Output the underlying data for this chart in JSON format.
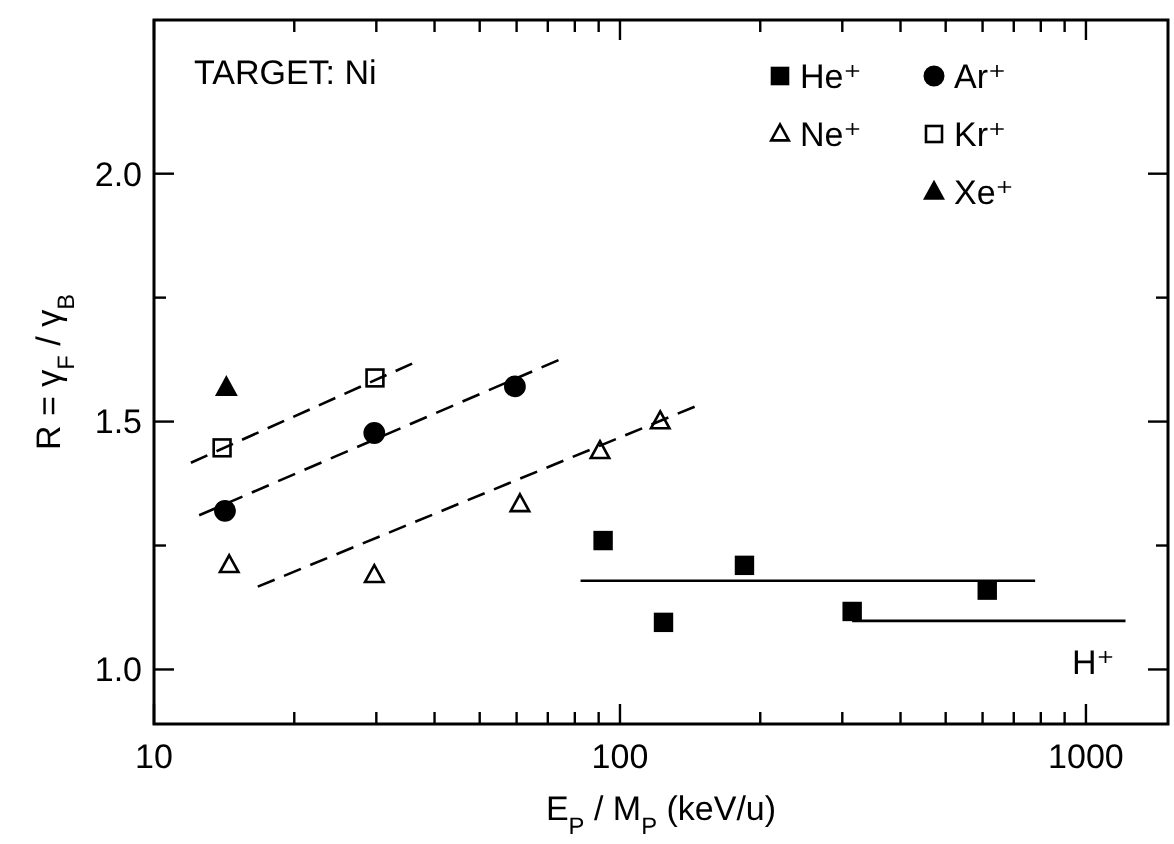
{
  "chart_data": {
    "type": "scatter",
    "xlabel": "E$_{P}$ / M$_{P}$ (keV/u)",
    "ylabel": "R = γ$_{F}$ / γ$_{B}$",
    "log": "x",
    "xlim": [
      10,
      1500
    ],
    "xticks": [
      10,
      {
        "value": 20,
        "label": null
      },
      {
        "value": 30,
        "label": null
      },
      {
        "value": 40,
        "label": null
      },
      {
        "value": 50,
        "label": null
      },
      {
        "value": 60,
        "label": null
      },
      {
        "value": 70,
        "label": null
      },
      {
        "value": 80,
        "label": null
      },
      {
        "value": 90,
        "label": null
      },
      100,
      {
        "value": 200,
        "label": null
      },
      {
        "value": 300,
        "label": null
      },
      {
        "value": 400,
        "label": null
      },
      {
        "value": 500,
        "label": null
      },
      {
        "value": 600,
        "label": null
      },
      {
        "value": 700,
        "label": null
      },
      {
        "value": 800,
        "label": null
      },
      {
        "value": 900,
        "label": null
      },
      1000
    ],
    "ylim": [
      0.89,
      2.31
    ],
    "yticks": [
      {
        "value": 1,
        "label": "1.0"
      },
      {
        "value": 1.25,
        "label": null
      },
      {
        "value": 1.5,
        "label": "1.5"
      },
      {
        "value": 1.75,
        "label": null
      },
      {
        "value": 2,
        "label": "2.0"
      }
    ],
    "grid": false,
    "legend": "top right",
    "annotations": [
      "TARGET: Ni",
      "H⁺"
    ],
    "series": [
      {
        "name": "He⁺",
        "color": "#000000",
        "marker": "square",
        "x": [
          92,
          124,
          185,
          315,
          614
        ],
        "values": [
          1.26,
          1.095,
          1.21,
          1.117,
          1.16
        ]
      },
      {
        "name": "Ne⁺",
        "color": "#ffffff",
        "marker": "triangle",
        "x": [
          14.5,
          29.7,
          61,
          90.6,
          122
        ],
        "values": [
          1.21,
          1.19,
          1.333,
          1.44,
          1.5
        ]
      },
      {
        "name": "Ar⁺",
        "color": "#000000",
        "marker": "circle",
        "x": [
          14.2,
          29.7,
          59.5
        ],
        "values": [
          1.32,
          1.477,
          1.571
        ]
      },
      {
        "name": "Kr⁺",
        "color": "#ffffff",
        "marker": "square",
        "x": [
          14.0,
          29.8
        ],
        "values": [
          1.447,
          1.588
        ]
      },
      {
        "name": "Xe⁺",
        "color": "#000000",
        "marker": "triangle",
        "x": [
          14.3
        ],
        "values": [
          1.568
        ]
      },
      {
        "type": "line",
        "color": "#000000",
        "marker": "none",
        "line_style": "dashed",
        "x": [
          12.0,
          35.8
        ],
        "values": [
          1.417,
          1.617
        ]
      },
      {
        "type": "line",
        "color": "#000000",
        "marker": "none",
        "line_style": "dashed",
        "x": [
          12.5,
          73.8
        ],
        "values": [
          1.311,
          1.624
        ]
      },
      {
        "type": "line",
        "color": "#000000",
        "marker": "none",
        "line_style": "dashed",
        "x": [
          16.7,
          144.6
        ],
        "values": [
          1.167,
          1.53
        ]
      },
      {
        "type": "line",
        "color": "#000000",
        "marker": "none",
        "line_style": "solid",
        "x": [
          82.3,
          778
        ],
        "values": [
          1.179,
          1.179
        ]
      },
      {
        "type": "line",
        "color": "#000000",
        "marker": "none",
        "line_style": "solid",
        "x": [
          315,
          1216
        ],
        "values": [
          1.098,
          1.098
        ]
      }
    ]
  }
}
